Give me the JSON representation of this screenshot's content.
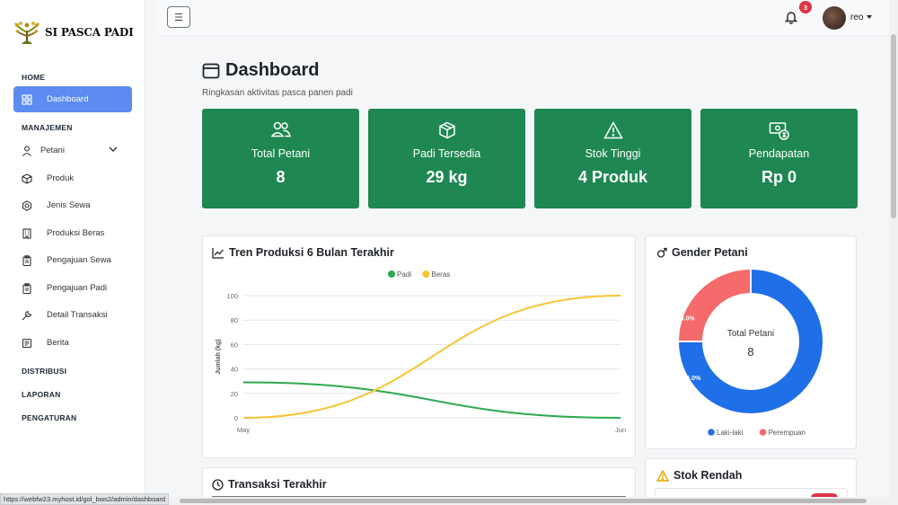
{
  "brand": {
    "name": "SI PASCA PADI"
  },
  "sidebar": {
    "sections": {
      "home": "HOME",
      "manajemen": "MANAJEMEN",
      "distribusi": "DISTRIBUSI",
      "laporan": "LAPORAN",
      "pengaturan": "PENGATURAN"
    },
    "items": [
      {
        "label": "Dashboard",
        "icon": "grid-icon"
      },
      {
        "label": "Petani",
        "icon": "person-icon"
      },
      {
        "label": "Produk",
        "icon": "box-icon"
      },
      {
        "label": "Jenis Sewa",
        "icon": "gear-icon"
      },
      {
        "label": "Produksi Beras",
        "icon": "building-icon"
      },
      {
        "label": "Pengajuan Sewa",
        "icon": "clipboard-icon"
      },
      {
        "label": "Pengajuan Padi",
        "icon": "clipboard-icon"
      },
      {
        "label": "Detail Transaksi",
        "icon": "wrench-icon"
      },
      {
        "label": "Berita",
        "icon": "newspaper-icon"
      }
    ]
  },
  "topbar": {
    "toggle": "☰",
    "notifications": "3",
    "user": "reo"
  },
  "status_url": "https://webfw23.myhost.id/gol_bws2/admin/dashboard",
  "header": {
    "title": "Dashboard",
    "subtitle": "Ringkasan aktivitas pasca panen padi"
  },
  "stats": [
    {
      "label": "Total Petani",
      "value": "8",
      "icon": "people-icon"
    },
    {
      "label": "Padi Tersedia",
      "value": "29 kg",
      "icon": "box-icon"
    },
    {
      "label": "Stok Tinggi",
      "value": "4 Produk",
      "icon": "warning-icon"
    },
    {
      "label": "Pendapatan",
      "value": "Rp 0",
      "icon": "cash-icon"
    }
  ],
  "colors": {
    "sidebar_active": "#5c8cf1",
    "stat_card": "#1e8752",
    "padi": "#2eaa4f",
    "beras": "#f6c531",
    "laki": "#1f6fe8",
    "perempuan": "#f56a6a"
  },
  "trend_card": {
    "title": "Tren Produksi 6 Bulan Terakhir"
  },
  "gender_card": {
    "title": "Gender Petani",
    "center_label": "Total Petani",
    "center_value": "8"
  },
  "transaksi_card": {
    "title": "Transaksi Terakhir"
  },
  "stok_card": {
    "title": "Stok Rendah"
  },
  "chart_data": [
    {
      "type": "line",
      "x": [
        "May",
        "Jun"
      ],
      "series": [
        {
          "name": "Padi",
          "values": [
            29,
            0
          ]
        },
        {
          "name": "Beras",
          "values": [
            0,
            100
          ]
        }
      ],
      "ylabel": "Jumlah (kg)",
      "yticks": [
        "0",
        "20",
        "40",
        "60",
        "80",
        "100"
      ],
      "ylim": [
        0,
        100
      ],
      "legend": "top",
      "grid": true
    },
    {
      "type": "pie",
      "labels": [
        "Laki-laki",
        "Perempuan"
      ],
      "values": [
        75.0,
        25.0
      ],
      "value_labels": [
        "75.0%",
        "25.0%"
      ],
      "legend": "bottom"
    }
  ]
}
